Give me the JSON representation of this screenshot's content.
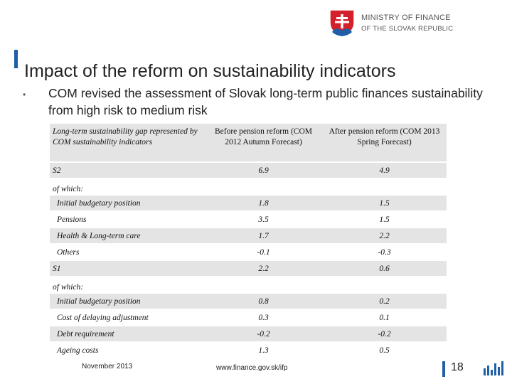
{
  "header": {
    "ministry_line1": "MINISTRY OF FINANCE",
    "ministry_line2": "OF THE SLOVAK REPUBLIC"
  },
  "slide": {
    "title": "Impact of the reform on sustainability indicators",
    "bullet": "COM revised the assessment of Slovak long-term public finances sustainability from high risk to medium risk"
  },
  "table": {
    "headers": [
      "Long-term sustainability gap represented by COM sustainability indicators",
      "Before pension reform (COM 2012 Autumn Forecast)",
      "After pension reform (COM 2013 Spring Forecast)"
    ],
    "rows": [
      {
        "label": "S2",
        "before": "6.9",
        "after": "4.9"
      },
      {
        "label": "of which:",
        "before": "",
        "after": ""
      },
      {
        "label": "Initial budgetary position",
        "before": "1.8",
        "after": "1.5"
      },
      {
        "label": "Pensions",
        "before": "3.5",
        "after": "1.5"
      },
      {
        "label": "Health & Long-term care",
        "before": "1.7",
        "after": "2.2"
      },
      {
        "label": "Others",
        "before": "-0.1",
        "after": "-0.3"
      },
      {
        "label": "S1",
        "before": "2.2",
        "after": "0.6"
      },
      {
        "label": "of which:",
        "before": "",
        "after": ""
      },
      {
        "label": "Initial budgetary position",
        "before": "0.8",
        "after": "0.2"
      },
      {
        "label": "Cost of delaying adjustment",
        "before": "0.3",
        "after": "0.1"
      },
      {
        "label": "Debt requirement",
        "before": "-0.2",
        "after": "-0.2"
      },
      {
        "label": "Ageing costs",
        "before": "1.3",
        "after": "0.5"
      }
    ]
  },
  "footer": {
    "date": "November 2013",
    "url": "www.finance.gov.sk/ifp",
    "page": "18"
  },
  "colors": {
    "accent": "#1f5fa8",
    "crest_red": "#d3202b",
    "table_shade": "#e4e4e4"
  }
}
